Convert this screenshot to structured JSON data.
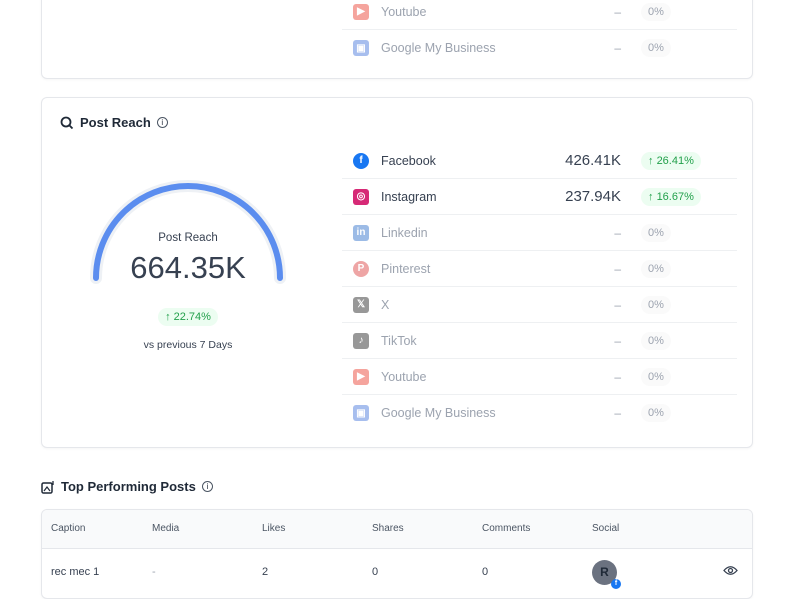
{
  "top_card_rows": [
    {
      "name": "Youtube",
      "value": "–",
      "change": "0%",
      "icon": "youtube-icon",
      "color": "#f0685d"
    },
    {
      "name": "Google My Business",
      "value": "–",
      "change": "0%",
      "icon": "google-my-business-icon",
      "color": "#6d94e3"
    }
  ],
  "post_reach": {
    "title": "Post Reach",
    "gauge_label": "Post Reach",
    "total": "664.35K",
    "change": "22.74%",
    "comparison": "vs previous 7 Days",
    "gauge_fill": 1.0,
    "accent": "#5b8def",
    "rows": [
      {
        "name": "Facebook",
        "value": "426.41K",
        "change": "26.41%",
        "active": true,
        "icon": "facebook-icon",
        "color": "#1877f2"
      },
      {
        "name": "Instagram",
        "value": "237.94K",
        "change": "16.67%",
        "active": true,
        "icon": "instagram-icon",
        "color": "#d62976"
      },
      {
        "name": "Linkedin",
        "value": "–",
        "change": "0%",
        "active": false,
        "icon": "linkedin-icon",
        "color": "#5c8fd6"
      },
      {
        "name": "Pinterest",
        "value": "–",
        "change": "0%",
        "active": false,
        "icon": "pinterest-icon",
        "color": "#e46a6a"
      },
      {
        "name": "X",
        "value": "–",
        "change": "0%",
        "active": false,
        "icon": "x-icon",
        "color": "#555"
      },
      {
        "name": "TikTok",
        "value": "–",
        "change": "0%",
        "active": false,
        "icon": "tiktok-icon",
        "color": "#555"
      },
      {
        "name": "Youtube",
        "value": "–",
        "change": "0%",
        "active": false,
        "icon": "youtube-icon",
        "color": "#f0685d"
      },
      {
        "name": "Google My Business",
        "value": "–",
        "change": "0%",
        "active": false,
        "icon": "google-my-business-icon",
        "color": "#6d94e3"
      }
    ]
  },
  "top_posts": {
    "title": "Top Performing Posts",
    "columns": [
      "Caption",
      "Media",
      "Likes",
      "Shares",
      "Comments",
      "Social"
    ],
    "rows": [
      {
        "caption": "rec mec 1",
        "media": "-",
        "likes": "2",
        "shares": "0",
        "comments": "0",
        "avatar": "R"
      }
    ]
  }
}
